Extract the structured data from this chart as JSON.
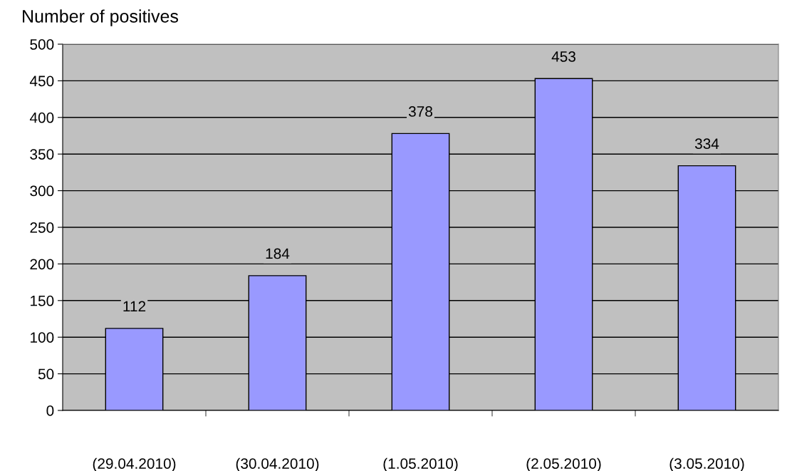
{
  "chart_data": {
    "type": "bar",
    "title": "Number of positives",
    "categories": [
      "(29.04.2010)",
      "(30.04.2010)",
      "(1.05.2010)",
      "(2.05.2010)",
      "(3.05.2010)"
    ],
    "values": [
      112,
      184,
      378,
      453,
      334
    ],
    "color": "#9999ff",
    "ylim": [
      0,
      500
    ],
    "yticks": [
      0,
      50,
      100,
      150,
      200,
      250,
      300,
      350,
      400,
      450,
      500
    ],
    "grid": "y",
    "data_labels": true,
    "legend": false
  }
}
